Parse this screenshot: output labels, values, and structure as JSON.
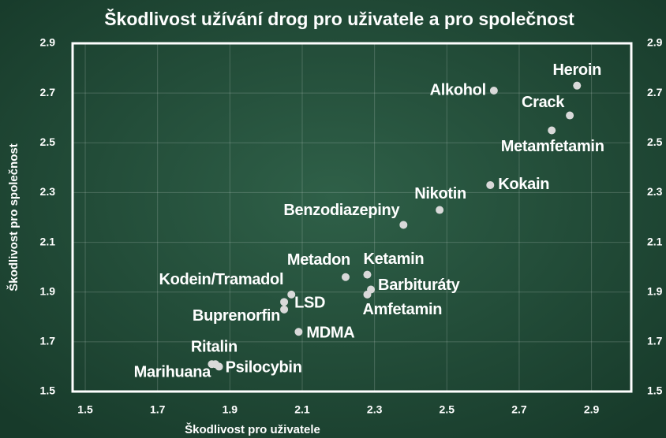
{
  "chart_data": {
    "type": "scatter",
    "title": "Škodlivost užívání drog pro uživatele a pro společnost",
    "xlabel": "Škodlivost pro uživatele",
    "ylabel": "Škodlivost pro společnost",
    "labels": [
      "Heroin",
      "Alkohol",
      "Crack",
      "Metamfetamin",
      "Kokain",
      "Nikotin",
      "Benzodiazepiny",
      "Metadon",
      "Ketamin",
      "Barbituráty",
      "Amfetamin",
      "Kodein/Tramadol",
      "LSD",
      "Buprenorfin",
      "MDMA",
      "Ritalin",
      "Marihuana",
      "Psilocybin"
    ],
    "x": [
      2.86,
      2.63,
      2.84,
      2.79,
      2.62,
      2.48,
      2.38,
      2.22,
      2.28,
      2.29,
      2.28,
      2.07,
      2.05,
      2.05,
      2.09,
      1.85,
      1.86,
      1.87
    ],
    "values": [
      2.73,
      2.71,
      2.61,
      2.55,
      2.33,
      2.23,
      2.17,
      1.96,
      1.97,
      1.91,
      1.89,
      1.89,
      1.86,
      1.83,
      1.74,
      1.61,
      1.61,
      1.6
    ],
    "color": "#d9d9d9",
    "xlim": [
      1.465,
      3.01
    ],
    "ylim": [
      1.5,
      2.9
    ],
    "xticks": [
      1.5,
      1.7,
      1.9,
      2.1,
      2.3,
      2.5,
      2.7,
      2.9
    ],
    "yticks": [
      1.5,
      1.7,
      1.9,
      2.1,
      2.3,
      2.5,
      2.7,
      2.9
    ],
    "grid": true
  }
}
